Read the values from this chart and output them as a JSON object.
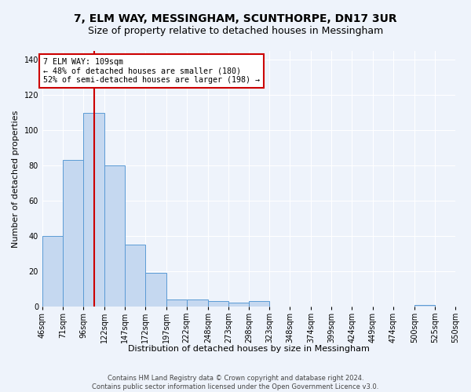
{
  "title": "7, ELM WAY, MESSINGHAM, SCUNTHORPE, DN17 3UR",
  "subtitle": "Size of property relative to detached houses in Messingham",
  "xlabel": "Distribution of detached houses by size in Messingham",
  "ylabel": "Number of detached properties",
  "bin_edges": [
    46,
    71,
    96,
    122,
    147,
    172,
    197,
    222,
    248,
    273,
    298,
    323,
    348,
    374,
    399,
    424,
    449,
    474,
    500,
    525,
    550
  ],
  "bin_labels": [
    "46sqm",
    "71sqm",
    "96sqm",
    "122sqm",
    "147sqm",
    "172sqm",
    "197sqm",
    "222sqm",
    "248sqm",
    "273sqm",
    "298sqm",
    "323sqm",
    "348sqm",
    "374sqm",
    "399sqm",
    "424sqm",
    "449sqm",
    "474sqm",
    "500sqm",
    "525sqm",
    "550sqm"
  ],
  "counts": [
    40,
    83,
    110,
    80,
    35,
    19,
    4,
    4,
    3,
    2,
    3,
    0,
    0,
    0,
    0,
    0,
    0,
    0,
    1,
    0,
    0
  ],
  "bar_color": "#c5d8f0",
  "bar_edge_color": "#5b9bd5",
  "property_size": 109,
  "property_label": "7 ELM WAY: 109sqm",
  "annotation_line1": "← 48% of detached houses are smaller (180)",
  "annotation_line2": "52% of semi-detached houses are larger (198) →",
  "red_line_x": 109,
  "annotation_box_color": "#ffffff",
  "annotation_box_edge": "#cc0000",
  "red_line_color": "#cc0000",
  "ylim": [
    0,
    145
  ],
  "yticks": [
    0,
    20,
    40,
    60,
    80,
    100,
    120,
    140
  ],
  "footer_line1": "Contains HM Land Registry data © Crown copyright and database right 2024.",
  "footer_line2": "Contains public sector information licensed under the Open Government Licence v3.0.",
  "bg_color": "#eef3fb",
  "grid_color": "#ffffff",
  "title_fontsize": 10,
  "subtitle_fontsize": 9,
  "axis_label_fontsize": 8,
  "tick_fontsize": 7,
  "footer_fontsize": 6
}
